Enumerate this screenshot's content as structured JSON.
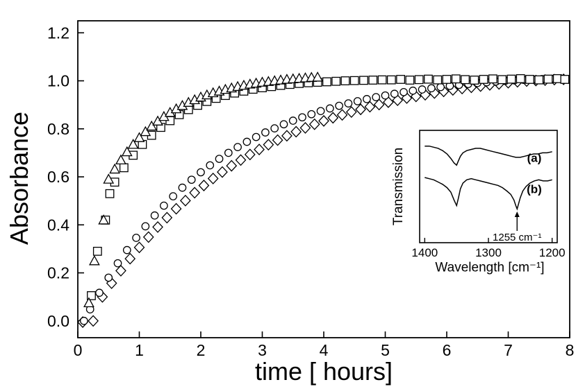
{
  "figure": {
    "background": "#ffffff",
    "axis_color": "#000000",
    "marker_color": "#000000",
    "marker_fill": "#ffffff"
  },
  "chart_data": {
    "type": "scatter",
    "title": "",
    "xlabel": "time [ hours]",
    "ylabel": "Absorbance",
    "xlim": [
      0,
      8
    ],
    "ylim": [
      -0.07,
      1.25
    ],
    "grid": false,
    "legend": "none",
    "xticks": [
      {
        "label": "0",
        "value": 0
      },
      {
        "label": "1",
        "value": 1
      },
      {
        "label": "2",
        "value": 2
      },
      {
        "label": "3",
        "value": 3
      },
      {
        "label": "4",
        "value": 4
      },
      {
        "label": "5",
        "value": 5
      },
      {
        "label": "6",
        "value": 6
      },
      {
        "label": "7",
        "value": 7
      },
      {
        "label": "8",
        "value": 8
      }
    ],
    "yticks": [
      {
        "label": "0.0",
        "value": 0.0
      },
      {
        "label": "0.2",
        "value": 0.2
      },
      {
        "label": "0.4",
        "value": 0.4
      },
      {
        "label": "0.6",
        "value": 0.6
      },
      {
        "label": "0.8",
        "value": 0.8
      },
      {
        "label": "1.0",
        "value": 1.0
      },
      {
        "label": "1.2",
        "value": 1.2
      }
    ],
    "series": [
      {
        "name": "series-diamonds",
        "marker": "diamond",
        "points": [
          [
            0.08,
            -0.005
          ],
          [
            0.25,
            0.0
          ],
          [
            0.4,
            0.1
          ],
          [
            0.55,
            0.157
          ],
          [
            0.7,
            0.209
          ],
          [
            0.85,
            0.259
          ],
          [
            1.0,
            0.306
          ],
          [
            1.15,
            0.349
          ],
          [
            1.3,
            0.391
          ],
          [
            1.45,
            0.43
          ],
          [
            1.6,
            0.467
          ],
          [
            1.75,
            0.501
          ],
          [
            1.9,
            0.534
          ],
          [
            2.05,
            0.564
          ],
          [
            2.2,
            0.593
          ],
          [
            2.35,
            0.62
          ],
          [
            2.5,
            0.646
          ],
          [
            2.65,
            0.67
          ],
          [
            2.8,
            0.693
          ],
          [
            2.95,
            0.714
          ],
          [
            3.1,
            0.734
          ],
          [
            3.25,
            0.753
          ],
          [
            3.4,
            0.771
          ],
          [
            3.55,
            0.788
          ],
          [
            3.7,
            0.804
          ],
          [
            3.85,
            0.819
          ],
          [
            4.0,
            0.833
          ],
          [
            4.15,
            0.846
          ],
          [
            4.3,
            0.858
          ],
          [
            4.45,
            0.87
          ],
          [
            4.6,
            0.881
          ],
          [
            4.75,
            0.892
          ],
          [
            4.9,
            0.901
          ],
          [
            5.05,
            0.911
          ],
          [
            5.2,
            0.919
          ],
          [
            5.35,
            0.928
          ],
          [
            5.5,
            0.935
          ],
          [
            5.65,
            0.942
          ],
          [
            5.8,
            0.949
          ],
          [
            5.95,
            0.956
          ],
          [
            6.1,
            0.962
          ],
          [
            6.25,
            0.968
          ],
          [
            6.4,
            0.973
          ],
          [
            6.55,
            0.978
          ],
          [
            6.7,
            0.983
          ],
          [
            6.85,
            0.987
          ],
          [
            7.0,
            0.992
          ],
          [
            7.15,
            0.996
          ],
          [
            7.3,
            0.999
          ],
          [
            7.45,
            1.001
          ],
          [
            7.6,
            1.003
          ],
          [
            7.75,
            1.005
          ],
          [
            7.9,
            1.006
          ]
        ]
      },
      {
        "name": "series-circles",
        "marker": "circle",
        "points": [
          [
            0.1,
            0.0
          ],
          [
            0.2,
            0.048
          ],
          [
            0.35,
            0.117
          ],
          [
            0.5,
            0.18
          ],
          [
            0.65,
            0.24
          ],
          [
            0.8,
            0.295
          ],
          [
            0.95,
            0.346
          ],
          [
            1.1,
            0.394
          ],
          [
            1.25,
            0.439
          ],
          [
            1.4,
            0.48
          ],
          [
            1.55,
            0.519
          ],
          [
            1.7,
            0.555
          ],
          [
            1.85,
            0.588
          ],
          [
            2.0,
            0.619
          ],
          [
            2.15,
            0.648
          ],
          [
            2.3,
            0.675
          ],
          [
            2.45,
            0.7
          ],
          [
            2.6,
            0.724
          ],
          [
            2.75,
            0.746
          ],
          [
            2.9,
            0.766
          ],
          [
            3.05,
            0.785
          ],
          [
            3.2,
            0.802
          ],
          [
            3.35,
            0.819
          ],
          [
            3.5,
            0.834
          ],
          [
            3.65,
            0.848
          ],
          [
            3.8,
            0.861
          ],
          [
            3.95,
            0.874
          ],
          [
            4.1,
            0.885
          ],
          [
            4.25,
            0.896
          ],
          [
            4.4,
            0.906
          ],
          [
            4.55,
            0.915
          ],
          [
            4.7,
            0.924
          ],
          [
            4.85,
            0.932
          ],
          [
            5.0,
            0.939
          ],
          [
            5.15,
            0.946
          ],
          [
            5.3,
            0.953
          ],
          [
            5.45,
            0.959
          ],
          [
            5.6,
            0.964
          ],
          [
            5.75,
            0.969
          ],
          [
            5.9,
            0.974
          ],
          [
            6.05,
            0.979
          ],
          [
            6.2,
            0.983
          ],
          [
            6.35,
            0.987
          ],
          [
            6.5,
            0.991
          ],
          [
            6.65,
            0.994
          ],
          [
            6.8,
            0.997
          ],
          [
            6.95,
            1.0
          ],
          [
            7.1,
            1.002
          ],
          [
            7.25,
            1.004
          ],
          [
            7.4,
            1.006
          ],
          [
            7.55,
            1.007
          ],
          [
            7.7,
            1.008
          ],
          [
            7.85,
            1.009
          ]
        ]
      },
      {
        "name": "series-squares",
        "marker": "square",
        "points": [
          [
            0.22,
            0.105
          ],
          [
            0.32,
            0.29
          ],
          [
            0.45,
            0.42
          ],
          [
            0.52,
            0.53
          ],
          [
            0.6,
            0.578
          ],
          [
            0.75,
            0.638
          ],
          [
            0.9,
            0.69
          ],
          [
            1.05,
            0.735
          ],
          [
            1.2,
            0.773
          ],
          [
            1.35,
            0.806
          ],
          [
            1.5,
            0.834
          ],
          [
            1.65,
            0.859
          ],
          [
            1.8,
            0.88
          ],
          [
            1.95,
            0.898
          ],
          [
            2.1,
            0.914
          ],
          [
            2.25,
            0.927
          ],
          [
            2.4,
            0.939
          ],
          [
            2.55,
            0.949
          ],
          [
            2.7,
            0.957
          ],
          [
            2.85,
            0.965
          ],
          [
            3.0,
            0.971
          ],
          [
            3.15,
            0.976
          ],
          [
            3.3,
            0.981
          ],
          [
            3.45,
            0.985
          ],
          [
            3.6,
            0.989
          ],
          [
            3.75,
            0.992
          ],
          [
            3.9,
            0.994
          ],
          [
            4.05,
            0.996
          ],
          [
            4.2,
            0.998
          ],
          [
            4.35,
            1.0
          ],
          [
            4.5,
            1.001
          ],
          [
            4.65,
            1.002
          ],
          [
            4.8,
            1.003
          ],
          [
            4.95,
            1.004
          ],
          [
            5.1,
            1.004
          ],
          [
            5.25,
            1.006
          ],
          [
            5.4,
            1.003
          ],
          [
            5.55,
            1.005
          ],
          [
            5.7,
            1.007
          ],
          [
            5.85,
            1.004
          ],
          [
            6.0,
            1.006
          ],
          [
            6.15,
            1.008
          ],
          [
            6.3,
            1.005
          ],
          [
            6.45,
            1.003
          ],
          [
            6.6,
            1.006
          ],
          [
            6.75,
            1.008
          ],
          [
            6.9,
            1.005
          ],
          [
            7.05,
            1.007
          ],
          [
            7.2,
            1.009
          ],
          [
            7.35,
            1.006
          ],
          [
            7.5,
            1.004
          ],
          [
            7.65,
            1.007
          ],
          [
            7.8,
            1.009
          ],
          [
            7.92,
            1.006
          ]
        ]
      },
      {
        "name": "series-triangles",
        "marker": "triangle",
        "points": [
          [
            0.18,
            0.075
          ],
          [
            0.27,
            0.25
          ],
          [
            0.42,
            0.42
          ],
          [
            0.5,
            0.59
          ],
          [
            0.6,
            0.632
          ],
          [
            0.7,
            0.67
          ],
          [
            0.8,
            0.704
          ],
          [
            0.9,
            0.735
          ],
          [
            1.0,
            0.763
          ],
          [
            1.1,
            0.788
          ],
          [
            1.2,
            0.811
          ],
          [
            1.3,
            0.832
          ],
          [
            1.4,
            0.851
          ],
          [
            1.5,
            0.868
          ],
          [
            1.6,
            0.883
          ],
          [
            1.7,
            0.897
          ],
          [
            1.8,
            0.91
          ],
          [
            1.9,
            0.921
          ],
          [
            2.0,
            0.932
          ],
          [
            2.1,
            0.941
          ],
          [
            2.2,
            0.95
          ],
          [
            2.3,
            0.957
          ],
          [
            2.4,
            0.964
          ],
          [
            2.5,
            0.97
          ],
          [
            2.6,
            0.976
          ],
          [
            2.7,
            0.981
          ],
          [
            2.8,
            0.986
          ],
          [
            2.9,
            0.99
          ],
          [
            3.0,
            0.994
          ],
          [
            3.1,
            0.997
          ],
          [
            3.2,
            1.0
          ],
          [
            3.3,
            1.003
          ],
          [
            3.4,
            1.006
          ],
          [
            3.5,
            1.008
          ],
          [
            3.6,
            1.01
          ],
          [
            3.7,
            1.012
          ],
          [
            3.8,
            1.014
          ],
          [
            3.9,
            1.015
          ]
        ]
      }
    ],
    "inset": {
      "type": "line",
      "xlabel": "Wavelength [cm⁻¹]",
      "ylabel": "Transmission",
      "xlim": [
        1408,
        1192
      ],
      "xticks": [
        {
          "label": "1400",
          "value": 1400
        },
        {
          "label": "1300",
          "value": 1300
        },
        {
          "label": "1200",
          "value": 1200
        }
      ],
      "annotation": {
        "text": "1255 cm⁻¹",
        "x": 1255
      },
      "curves": [
        {
          "id": "a",
          "label": "(a)",
          "label_x": 1228,
          "label_v": 0.72,
          "points": [
            [
              1400,
              0.86
            ],
            [
              1393,
              0.86
            ],
            [
              1386,
              0.85
            ],
            [
              1379,
              0.84
            ],
            [
              1372,
              0.82
            ],
            [
              1365,
              0.79
            ],
            [
              1359,
              0.75
            ],
            [
              1354,
              0.71
            ],
            [
              1350,
              0.69
            ],
            [
              1347,
              0.73
            ],
            [
              1344,
              0.77
            ],
            [
              1340,
              0.8
            ],
            [
              1334,
              0.82
            ],
            [
              1327,
              0.83
            ],
            [
              1320,
              0.84
            ],
            [
              1313,
              0.84
            ],
            [
              1306,
              0.83
            ],
            [
              1299,
              0.82
            ],
            [
              1292,
              0.81
            ],
            [
              1285,
              0.8
            ],
            [
              1278,
              0.79
            ],
            [
              1271,
              0.78
            ],
            [
              1264,
              0.77
            ],
            [
              1257,
              0.76
            ],
            [
              1250,
              0.76
            ],
            [
              1243,
              0.77
            ],
            [
              1236,
              0.78
            ],
            [
              1229,
              0.79
            ],
            [
              1222,
              0.79
            ],
            [
              1215,
              0.8
            ],
            [
              1208,
              0.8
            ],
            [
              1200,
              0.81
            ]
          ]
        },
        {
          "id": "b",
          "label": "(b)",
          "label_x": 1228,
          "label_v": 0.44,
          "points": [
            [
              1400,
              0.58
            ],
            [
              1393,
              0.57
            ],
            [
              1386,
              0.56
            ],
            [
              1379,
              0.54
            ],
            [
              1372,
              0.52
            ],
            [
              1365,
              0.49
            ],
            [
              1359,
              0.45
            ],
            [
              1354,
              0.38
            ],
            [
              1350,
              0.33
            ],
            [
              1347,
              0.4
            ],
            [
              1344,
              0.48
            ],
            [
              1340,
              0.53
            ],
            [
              1334,
              0.56
            ],
            [
              1327,
              0.57
            ],
            [
              1320,
              0.56
            ],
            [
              1313,
              0.55
            ],
            [
              1306,
              0.54
            ],
            [
              1299,
              0.53
            ],
            [
              1292,
              0.52
            ],
            [
              1285,
              0.51
            ],
            [
              1278,
              0.49
            ],
            [
              1271,
              0.46
            ],
            [
              1265,
              0.43
            ],
            [
              1260,
              0.38
            ],
            [
              1257,
              0.33
            ],
            [
              1255,
              0.3
            ],
            [
              1253,
              0.34
            ],
            [
              1250,
              0.4
            ],
            [
              1246,
              0.46
            ],
            [
              1241,
              0.5
            ],
            [
              1235,
              0.53
            ],
            [
              1228,
              0.55
            ],
            [
              1221,
              0.56
            ],
            [
              1214,
              0.55
            ],
            [
              1207,
              0.55
            ],
            [
              1200,
              0.56
            ]
          ]
        }
      ]
    }
  }
}
